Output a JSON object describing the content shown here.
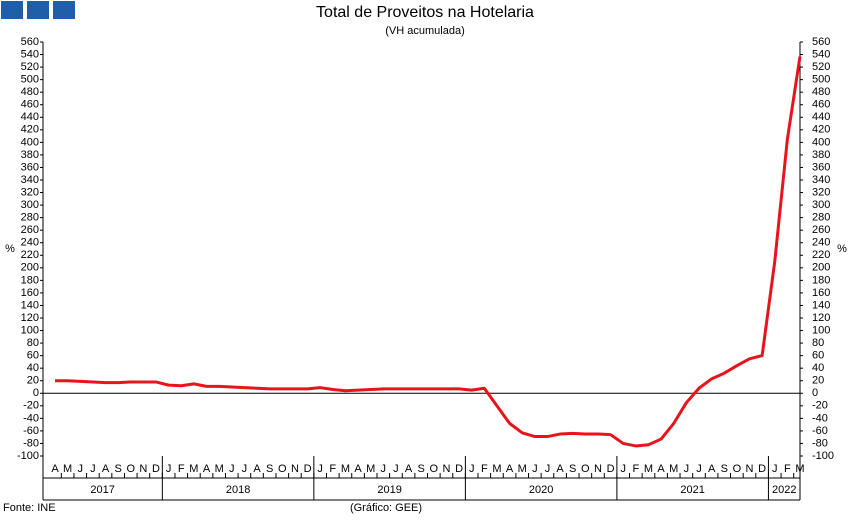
{
  "chart_data": {
    "type": "line",
    "title": "Total de Proveitos na Hotelaria",
    "subtitle": "(VH acumulada)",
    "y_label": "%",
    "source": "Fonte: INE",
    "credit": "(Gráfico: GEE)",
    "categories": [
      "A",
      "M",
      "J",
      "J",
      "A",
      "S",
      "O",
      "N",
      "D",
      "J",
      "F",
      "M",
      "A",
      "M",
      "J",
      "J",
      "A",
      "S",
      "O",
      "N",
      "D",
      "J",
      "F",
      "M",
      "A",
      "M",
      "J",
      "J",
      "A",
      "S",
      "O",
      "N",
      "D",
      "J",
      "F",
      "M",
      "A",
      "M",
      "J",
      "J",
      "A",
      "S",
      "O",
      "N",
      "D",
      "J",
      "F",
      "M",
      "A",
      "M",
      "J",
      "J",
      "A",
      "S",
      "O",
      "N",
      "D",
      "J",
      "F",
      "M"
    ],
    "years": [
      "2017",
      "2018",
      "2019",
      "2020",
      "2021",
      "2022"
    ],
    "series": [
      {
        "name": "Total de Proveitos",
        "color": "#e8141c",
        "values": [
          20,
          20,
          19,
          18,
          17,
          17,
          18,
          18,
          18,
          13,
          12,
          15,
          11,
          11,
          10,
          9,
          8,
          7,
          7,
          7,
          7,
          9,
          6,
          4,
          5,
          6,
          7,
          7,
          7,
          7,
          7,
          7,
          7,
          5,
          8,
          -20,
          -48,
          -63,
          -69,
          -69,
          -65,
          -64,
          -65,
          -65,
          -66,
          -80,
          -84,
          -82,
          -73,
          -48,
          -15,
          8,
          23,
          32,
          44,
          55,
          60,
          210,
          405,
          537
        ]
      }
    ],
    "ylim": [
      -100,
      560
    ],
    "yticks": [
      -100,
      -80,
      -60,
      -40,
      -20,
      0,
      20,
      40,
      60,
      80,
      100,
      120,
      140,
      160,
      180,
      200,
      220,
      240,
      260,
      280,
      300,
      320,
      340,
      360,
      380,
      400,
      420,
      440,
      460,
      480,
      500,
      520,
      540,
      560
    ]
  }
}
